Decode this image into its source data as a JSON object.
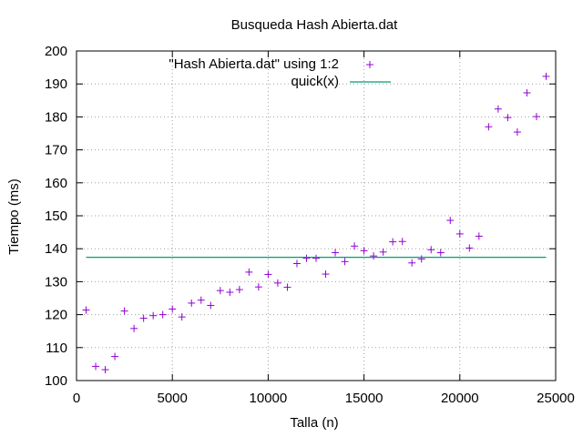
{
  "chart_data": {
    "type": "scatter",
    "title": "Busqueda Hash Abierta.dat",
    "xlabel": "Talla (n)",
    "ylabel": "Tiempo (ms)",
    "xlim": [
      0,
      25000
    ],
    "ylim": [
      100,
      200
    ],
    "xticks": [
      0,
      5000,
      10000,
      15000,
      20000,
      25000
    ],
    "yticks": [
      100,
      110,
      120,
      130,
      140,
      150,
      160,
      170,
      180,
      190,
      200
    ],
    "grid": true,
    "legend_position": "top-right",
    "series": [
      {
        "name": "\"Hash Abierta.dat\" using 1:2",
        "kind": "points",
        "marker": "plus",
        "color": "#9400d3",
        "x": [
          500,
          1000,
          1500,
          2000,
          2500,
          3000,
          3500,
          4000,
          4500,
          5000,
          5500,
          6000,
          6500,
          7000,
          7500,
          8000,
          8500,
          9000,
          9500,
          10000,
          10500,
          11000,
          11500,
          12000,
          12500,
          13000,
          13500,
          14000,
          14500,
          15000,
          15500,
          16000,
          16500,
          17000,
          17500,
          18000,
          18500,
          19000,
          19500,
          20000,
          20500,
          21000,
          21500,
          22000,
          22500,
          23000,
          23500,
          24000,
          24500
        ],
        "y": [
          121.4,
          104.3,
          103.3,
          107.3,
          121.1,
          115.8,
          118.9,
          119.7,
          120.0,
          121.7,
          119.3,
          123.5,
          124.4,
          122.8,
          127.3,
          126.8,
          127.6,
          132.9,
          128.4,
          132.2,
          129.6,
          128.3,
          135.5,
          137.1,
          137.1,
          132.3,
          138.8,
          136.1,
          140.8,
          139.4,
          137.8,
          139.0,
          142.1,
          142.2,
          135.7,
          136.9,
          139.7,
          138.8,
          148.6,
          144.5,
          140.2,
          143.8,
          177.0,
          182.4,
          179.8,
          175.4,
          187.3,
          180.1,
          192.3
        ]
      },
      {
        "name": "quick(x)",
        "kind": "line",
        "color": "#009e73",
        "x": [
          500,
          24500
        ],
        "y": [
          137.4,
          137.4
        ]
      }
    ]
  }
}
